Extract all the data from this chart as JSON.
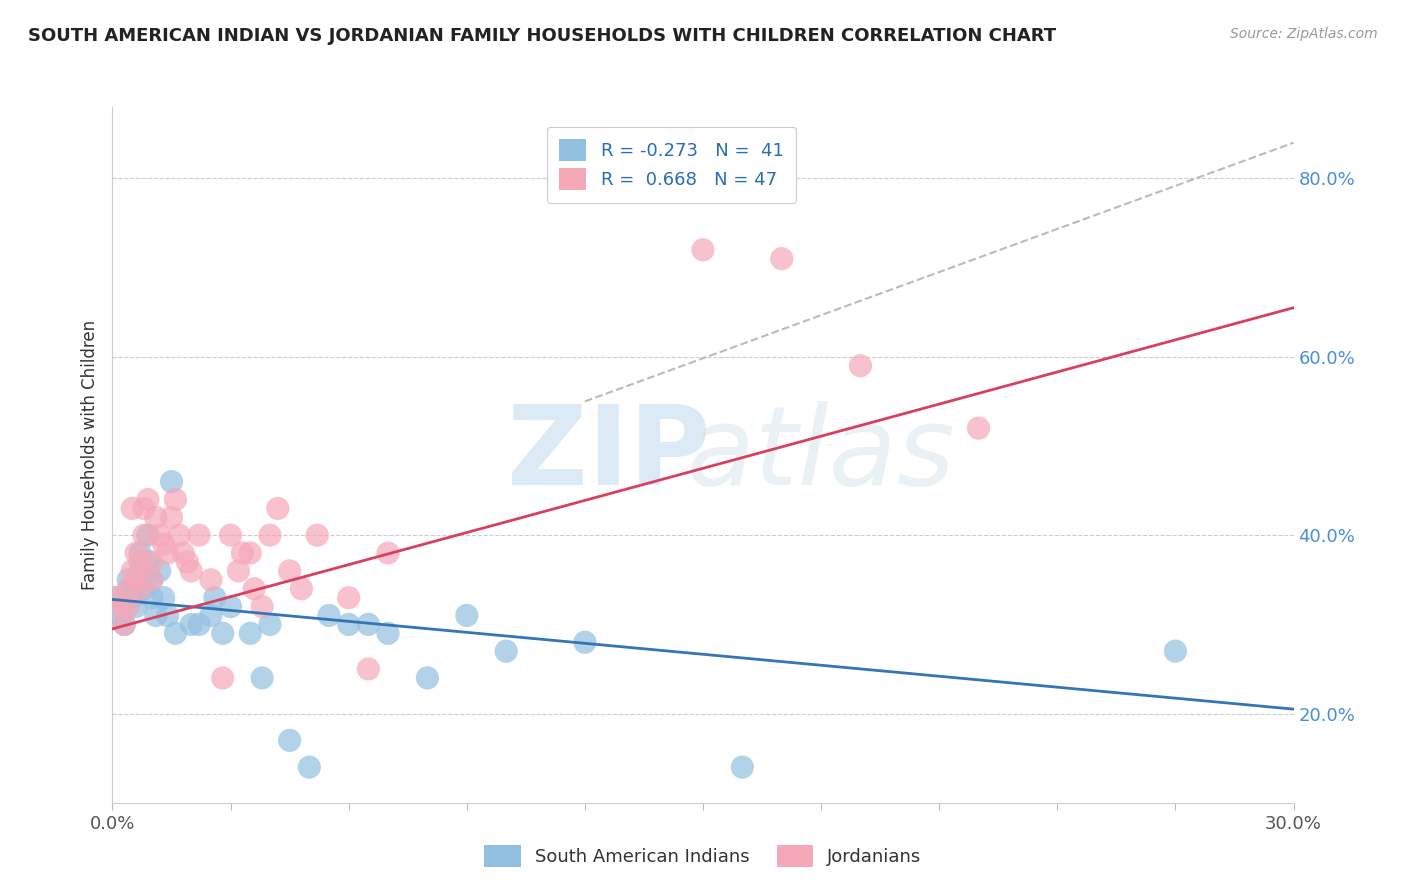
{
  "title": "SOUTH AMERICAN INDIAN VS JORDANIAN FAMILY HOUSEHOLDS WITH CHILDREN CORRELATION CHART",
  "source": "Source: ZipAtlas.com",
  "ylabel": "Family Households with Children",
  "x_min": 0.0,
  "x_max": 0.3,
  "y_min": 0.1,
  "y_max": 0.88,
  "x_ticks": [
    0.0,
    0.03,
    0.06,
    0.09,
    0.12,
    0.15,
    0.18,
    0.21,
    0.24,
    0.27,
    0.3
  ],
  "x_tick_labels_show": [
    "0.0%",
    "",
    "",
    "",
    "",
    "",
    "",
    "",
    "",
    "",
    "30.0%"
  ],
  "y_ticks_right": [
    0.2,
    0.4,
    0.6,
    0.8
  ],
  "y_tick_labels_right": [
    "20.0%",
    "40.0%",
    "60.0%",
    "80.0%"
  ],
  "blue_color": "#92c0e0",
  "pink_color": "#f5a8b8",
  "blue_line_color": "#3575b5",
  "pink_line_color": "#d94060",
  "dashed_line_color": "#bbbbbb",
  "legend_R_blue": "R = -0.273",
  "legend_N_blue": "N =  41",
  "legend_R_pink": "R =  0.668",
  "legend_N_pink": "N = 47",
  "legend_label_blue": "South American Indians",
  "legend_label_pink": "Jordanians",
  "blue_scatter_x": [
    0.001,
    0.002,
    0.003,
    0.004,
    0.005,
    0.005,
    0.006,
    0.007,
    0.007,
    0.008,
    0.009,
    0.009,
    0.01,
    0.01,
    0.011,
    0.012,
    0.013,
    0.014,
    0.015,
    0.016,
    0.02,
    0.022,
    0.025,
    0.026,
    0.028,
    0.03,
    0.035,
    0.038,
    0.04,
    0.045,
    0.05,
    0.055,
    0.06,
    0.065,
    0.07,
    0.08,
    0.09,
    0.1,
    0.12,
    0.16,
    0.27
  ],
  "blue_scatter_y": [
    0.33,
    0.31,
    0.3,
    0.35,
    0.34,
    0.33,
    0.32,
    0.38,
    0.36,
    0.34,
    0.4,
    0.37,
    0.35,
    0.33,
    0.31,
    0.36,
    0.33,
    0.31,
    0.46,
    0.29,
    0.3,
    0.3,
    0.31,
    0.33,
    0.29,
    0.32,
    0.29,
    0.24,
    0.3,
    0.17,
    0.14,
    0.31,
    0.3,
    0.3,
    0.29,
    0.24,
    0.31,
    0.27,
    0.28,
    0.14,
    0.27
  ],
  "pink_scatter_x": [
    0.001,
    0.002,
    0.003,
    0.004,
    0.004,
    0.005,
    0.005,
    0.006,
    0.006,
    0.007,
    0.007,
    0.008,
    0.008,
    0.009,
    0.01,
    0.01,
    0.011,
    0.012,
    0.013,
    0.014,
    0.015,
    0.016,
    0.017,
    0.018,
    0.019,
    0.02,
    0.022,
    0.025,
    0.028,
    0.03,
    0.032,
    0.033,
    0.035,
    0.036,
    0.038,
    0.04,
    0.042,
    0.045,
    0.048,
    0.052,
    0.06,
    0.065,
    0.07,
    0.15,
    0.19,
    0.22,
    0.17
  ],
  "pink_scatter_y": [
    0.33,
    0.32,
    0.3,
    0.34,
    0.32,
    0.43,
    0.36,
    0.38,
    0.35,
    0.37,
    0.34,
    0.43,
    0.4,
    0.44,
    0.37,
    0.35,
    0.42,
    0.4,
    0.39,
    0.38,
    0.42,
    0.44,
    0.4,
    0.38,
    0.37,
    0.36,
    0.4,
    0.35,
    0.24,
    0.4,
    0.36,
    0.38,
    0.38,
    0.34,
    0.32,
    0.4,
    0.43,
    0.36,
    0.34,
    0.4,
    0.33,
    0.25,
    0.38,
    0.72,
    0.59,
    0.52,
    0.71
  ],
  "blue_trend_x": [
    0.0,
    0.3
  ],
  "blue_trend_y": [
    0.328,
    0.205
  ],
  "pink_trend_x": [
    0.0,
    0.3
  ],
  "pink_trend_y": [
    0.295,
    0.655
  ],
  "diag_line_x": [
    0.12,
    0.3
  ],
  "diag_line_y": [
    0.55,
    0.84
  ]
}
